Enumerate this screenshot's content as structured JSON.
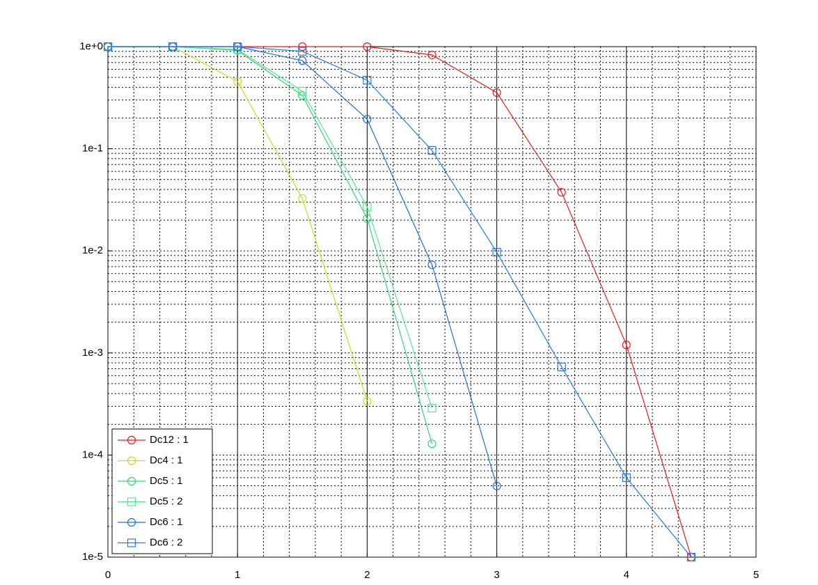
{
  "chart_data": {
    "type": "line",
    "xlim": [
      0,
      5
    ],
    "xticks": [
      0,
      1,
      2,
      3,
      4,
      5
    ],
    "ylim": [
      1e-05,
      1
    ],
    "log_y": true,
    "yticks": [
      {
        "value": 1,
        "label": "1e+0"
      },
      {
        "value": 0.1,
        "label": "1e-1"
      },
      {
        "value": 0.01,
        "label": "1e-2"
      },
      {
        "value": 0.001,
        "label": "1e-3"
      },
      {
        "value": 0.0001,
        "label": "1e-4"
      },
      {
        "value": 1e-05,
        "label": "1e-5"
      }
    ],
    "grid": true,
    "legend": "lower left",
    "series": [
      {
        "name": "Dc12 : 1",
        "color": "#e8191a",
        "marker": "circle",
        "x": [
          0,
          0.5,
          1,
          1.5,
          2,
          2.5,
          3,
          3.5,
          4,
          4.5
        ],
        "values": [
          1,
          1,
          1,
          1,
          1,
          0.83,
          0.355,
          0.0375,
          0.0012,
          1e-05
        ]
      },
      {
        "name": "Dc4 : 1",
        "color": "#c8dc1e",
        "marker": "circle",
        "x": [
          0,
          0.5,
          1,
          1.5,
          2
        ],
        "values": [
          1,
          1,
          0.456,
          0.0326,
          0.000337
        ]
      },
      {
        "name": "Dc5 : 1",
        "color": "#2ed872",
        "marker": "circle",
        "x": [
          0,
          0.5,
          1,
          1.5,
          2,
          2.5
        ],
        "values": [
          1,
          1,
          0.92,
          0.333,
          0.0207,
          0.000129
        ]
      },
      {
        "name": "Dc5 : 2",
        "color": "#55e890",
        "marker": "square",
        "x": [
          0,
          0.5,
          1,
          1.5,
          2,
          2.5
        ],
        "values": [
          1,
          1,
          0.94,
          0.366,
          0.027,
          0.000288
        ]
      },
      {
        "name": "Dc6 : 1",
        "color": "#1a6fdf",
        "marker": "circle",
        "x": [
          0,
          0.5,
          1,
          1.5,
          2,
          2.5,
          3
        ],
        "values": [
          1,
          1,
          1,
          0.73,
          0.195,
          0.0073,
          4.97e-05
        ]
      },
      {
        "name": "Dc6 : 2",
        "color": "#1e7ae6",
        "marker": "square",
        "x": [
          0,
          0.5,
          1,
          1.5,
          2,
          2.5,
          3,
          3.5,
          4,
          4.5
        ],
        "values": [
          1,
          1,
          1,
          0.9,
          0.47,
          0.0964,
          0.0097,
          0.00073,
          6e-05,
          1e-05
        ]
      }
    ]
  }
}
